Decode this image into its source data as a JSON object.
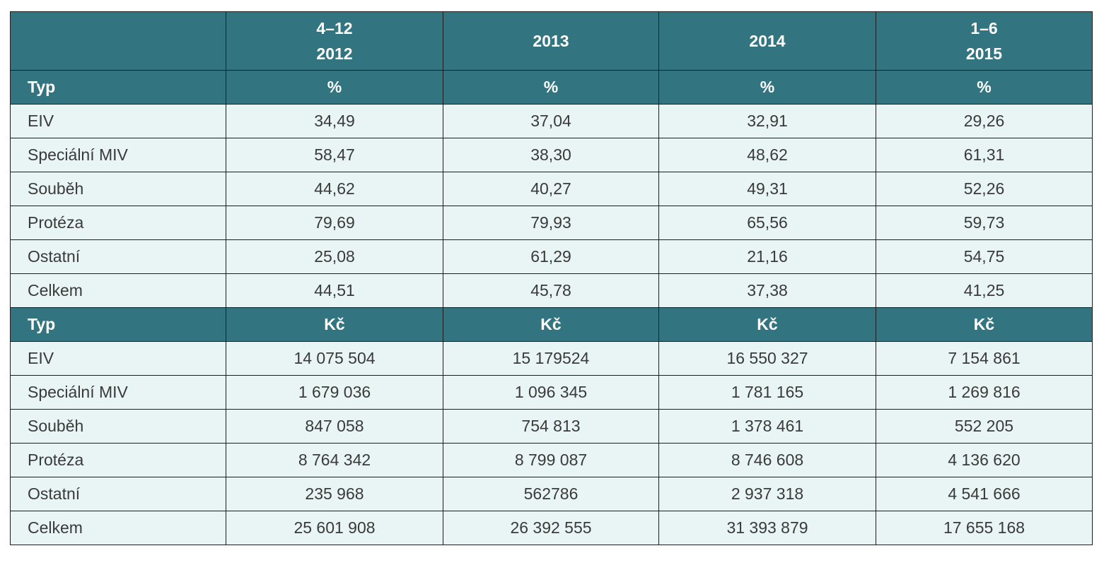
{
  "header": {
    "columns": [
      {
        "line1": "",
        "line2": ""
      },
      {
        "line1": "4–12",
        "line2": "2012"
      },
      {
        "line1": "2013",
        "line2": ""
      },
      {
        "line1": "2014",
        "line2": ""
      },
      {
        "line1": "1–6",
        "line2": "2015"
      }
    ]
  },
  "sections": [
    {
      "type_label": "Typ",
      "unit": "%",
      "rows": [
        {
          "label": "EIV",
          "values": [
            "34,49",
            "37,04",
            "32,91",
            "29,26"
          ]
        },
        {
          "label": "Speciální MIV",
          "values": [
            "58,47",
            "38,30",
            "48,62",
            "61,31"
          ]
        },
        {
          "label": "Souběh",
          "values": [
            "44,62",
            "40,27",
            "49,31",
            "52,26"
          ]
        },
        {
          "label": "Protéza",
          "values": [
            "79,69",
            "79,93",
            "65,56",
            "59,73"
          ]
        },
        {
          "label": "Ostatní",
          "values": [
            "25,08",
            "61,29",
            "21,16",
            "54,75"
          ]
        },
        {
          "label": "Celkem",
          "values": [
            "44,51",
            "45,78",
            "37,38",
            "41,25"
          ]
        }
      ]
    },
    {
      "type_label": "Typ",
      "unit": "Kč",
      "rows": [
        {
          "label": "EIV",
          "values": [
            "14 075 504",
            "15 179524",
            "16 550 327",
            "7 154 861"
          ]
        },
        {
          "label": "Speciální MIV",
          "values": [
            "1 679 036",
            "1 096 345",
            "1 781 165",
            "1 269 816"
          ]
        },
        {
          "label": "Souběh",
          "values": [
            "847 058",
            "754 813",
            "1 378 461",
            "552 205"
          ]
        },
        {
          "label": "Protéza",
          "values": [
            "8 764 342",
            "8 799 087",
            "8 746 608",
            "4 136 620"
          ]
        },
        {
          "label": "Ostatní",
          "values": [
            "235 968",
            "562786",
            "2 937 318",
            "4 541 666"
          ]
        },
        {
          "label": "Celkem",
          "values": [
            "25 601 908",
            "26 392 555",
            "31 393 879",
            "17 655 168"
          ]
        }
      ]
    }
  ],
  "colors": {
    "header_bg": "#327581",
    "row_bg": "#e9f5f4",
    "border": "#1d1d1d"
  }
}
